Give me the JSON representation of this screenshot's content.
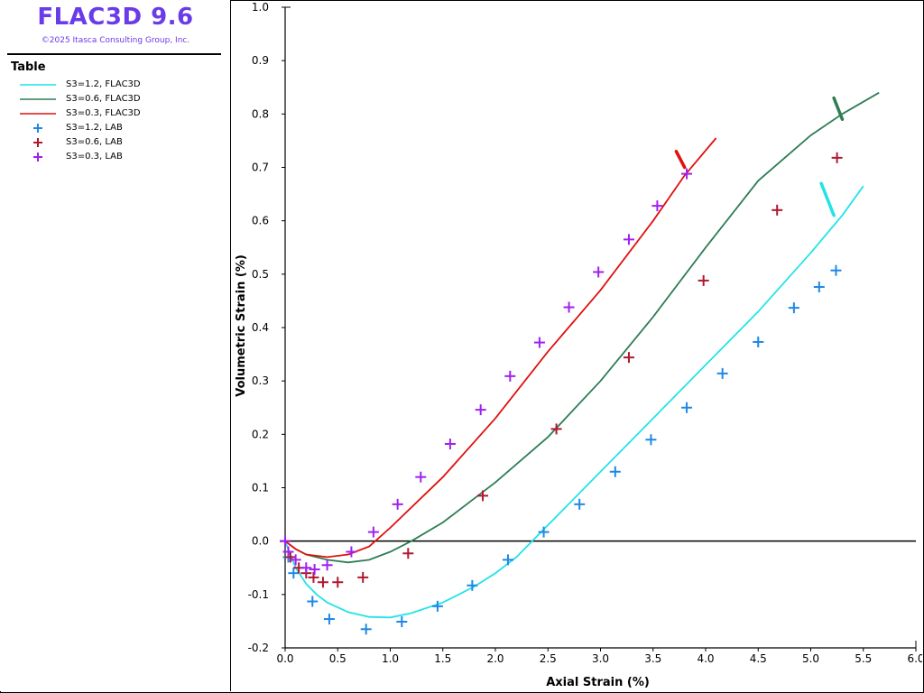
{
  "sidebar": {
    "app_title": "FLAC3D 9.6",
    "copyright": "©2025 Itasca Consulting Group, Inc.",
    "legend_heading": "Table"
  },
  "legend": [
    {
      "label": "S3=1.2, FLAC3D",
      "kind": "line",
      "color": "#22e3e8"
    },
    {
      "label": "S3=0.6, FLAC3D",
      "kind": "line",
      "color": "#2e7d55"
    },
    {
      "label": "S3=0.3, FLAC3D",
      "kind": "line",
      "color": "#e01010"
    },
    {
      "label": "S3=1.2, LAB",
      "kind": "cross",
      "color": "#1e88e5"
    },
    {
      "label": "S3=0.6, LAB",
      "kind": "cross",
      "color": "#b0182e"
    },
    {
      "label": "S3=0.3, LAB",
      "kind": "cross",
      "color": "#a020f0"
    }
  ],
  "chart_data": {
    "type": "line",
    "xlabel": "Axial Strain (%)",
    "ylabel": "Volumetric Strain (%)",
    "xlim": [
      0.0,
      6.0
    ],
    "ylim": [
      -0.2,
      1.0
    ],
    "xticks": [
      "0.0",
      "0.5",
      "1.0",
      "1.5",
      "2.0",
      "2.5",
      "3.0",
      "3.5",
      "4.0",
      "4.5",
      "5.0",
      "5.5",
      "6.0"
    ],
    "yticks": [
      "-0.2",
      "-0.1",
      "0.0",
      "0.1",
      "0.2",
      "0.3",
      "0.4",
      "0.5",
      "0.6",
      "0.7",
      "0.8",
      "0.9",
      "1.0"
    ],
    "zero_line": true,
    "grid": false,
    "series": [
      {
        "name": "S3=1.2, FLAC3D",
        "kind": "line",
        "color": "#22e3e8",
        "points": [
          [
            0.0,
            0.0
          ],
          [
            0.1,
            -0.05
          ],
          [
            0.2,
            -0.08
          ],
          [
            0.3,
            -0.1
          ],
          [
            0.4,
            -0.115
          ],
          [
            0.6,
            -0.133
          ],
          [
            0.8,
            -0.142
          ],
          [
            1.0,
            -0.143
          ],
          [
            1.2,
            -0.135
          ],
          [
            1.5,
            -0.115
          ],
          [
            1.8,
            -0.085
          ],
          [
            2.0,
            -0.06
          ],
          [
            2.2,
            -0.03
          ],
          [
            2.5,
            0.03
          ],
          [
            3.0,
            0.13
          ],
          [
            3.5,
            0.23
          ],
          [
            4.0,
            0.33
          ],
          [
            4.5,
            0.43
          ],
          [
            5.0,
            0.54
          ],
          [
            5.3,
            0.61
          ],
          [
            5.5,
            0.665
          ]
        ],
        "tick": [
          [
            5.22,
            0.61
          ],
          [
            5.1,
            0.67
          ]
        ]
      },
      {
        "name": "S3=0.6, FLAC3D",
        "kind": "line",
        "color": "#2e7d55",
        "points": [
          [
            0.0,
            0.0
          ],
          [
            0.1,
            -0.015
          ],
          [
            0.2,
            -0.025
          ],
          [
            0.4,
            -0.035
          ],
          [
            0.6,
            -0.04
          ],
          [
            0.8,
            -0.035
          ],
          [
            1.0,
            -0.02
          ],
          [
            1.2,
            0.0
          ],
          [
            1.5,
            0.035
          ],
          [
            2.0,
            0.11
          ],
          [
            2.5,
            0.195
          ],
          [
            3.0,
            0.3
          ],
          [
            3.5,
            0.42
          ],
          [
            4.0,
            0.55
          ],
          [
            4.5,
            0.675
          ],
          [
            5.0,
            0.76
          ],
          [
            5.3,
            0.8
          ],
          [
            5.65,
            0.84
          ]
        ],
        "tick": [
          [
            5.3,
            0.79
          ],
          [
            5.22,
            0.83
          ]
        ]
      },
      {
        "name": "S3=0.3, FLAC3D",
        "kind": "line",
        "color": "#e01010",
        "points": [
          [
            0.0,
            0.0
          ],
          [
            0.1,
            -0.015
          ],
          [
            0.2,
            -0.025
          ],
          [
            0.4,
            -0.03
          ],
          [
            0.6,
            -0.025
          ],
          [
            0.8,
            -0.01
          ],
          [
            1.0,
            0.025
          ],
          [
            1.5,
            0.12
          ],
          [
            2.0,
            0.23
          ],
          [
            2.5,
            0.355
          ],
          [
            3.0,
            0.47
          ],
          [
            3.5,
            0.6
          ],
          [
            3.8,
            0.685
          ],
          [
            4.1,
            0.755
          ]
        ],
        "tick": [
          [
            3.8,
            0.7
          ],
          [
            3.72,
            0.73
          ]
        ]
      },
      {
        "name": "S3=1.2, LAB",
        "kind": "scatter",
        "color": "#1e88e5",
        "points": [
          [
            0.0,
            0.0
          ],
          [
            0.03,
            -0.03
          ],
          [
            0.08,
            -0.06
          ],
          [
            0.26,
            -0.113
          ],
          [
            0.42,
            -0.146
          ],
          [
            0.77,
            -0.165
          ],
          [
            1.11,
            -0.151
          ],
          [
            1.45,
            -0.122
          ],
          [
            1.78,
            -0.083
          ],
          [
            2.12,
            -0.035
          ],
          [
            2.46,
            0.017
          ],
          [
            2.8,
            0.069
          ],
          [
            3.14,
            0.13
          ],
          [
            3.48,
            0.19
          ],
          [
            3.82,
            0.25
          ],
          [
            4.16,
            0.314
          ],
          [
            4.5,
            0.373
          ],
          [
            4.84,
            0.437
          ],
          [
            5.08,
            0.476
          ],
          [
            5.24,
            0.507
          ]
        ]
      },
      {
        "name": "S3=0.6, LAB",
        "kind": "scatter",
        "color": "#b0182e",
        "points": [
          [
            0.0,
            0.0
          ],
          [
            0.05,
            -0.03
          ],
          [
            0.13,
            -0.05
          ],
          [
            0.2,
            -0.06
          ],
          [
            0.27,
            -0.068
          ],
          [
            0.36,
            -0.077
          ],
          [
            0.5,
            -0.077
          ],
          [
            0.74,
            -0.068
          ],
          [
            1.17,
            -0.023
          ],
          [
            1.88,
            0.085
          ],
          [
            2.58,
            0.21
          ],
          [
            3.27,
            0.344
          ],
          [
            3.98,
            0.488
          ],
          [
            4.68,
            0.62
          ],
          [
            5.25,
            0.718
          ]
        ]
      },
      {
        "name": "S3=0.3, LAB",
        "kind": "scatter",
        "color": "#a020f0",
        "points": [
          [
            0.0,
            0.0
          ],
          [
            0.03,
            -0.02
          ],
          [
            0.1,
            -0.035
          ],
          [
            0.2,
            -0.05
          ],
          [
            0.28,
            -0.053
          ],
          [
            0.4,
            -0.045
          ],
          [
            0.63,
            -0.02
          ],
          [
            0.84,
            0.017
          ],
          [
            1.07,
            0.069
          ],
          [
            1.29,
            0.12
          ],
          [
            1.57,
            0.182
          ],
          [
            1.86,
            0.246
          ],
          [
            2.14,
            0.309
          ],
          [
            2.42,
            0.372
          ],
          [
            2.7,
            0.438
          ],
          [
            2.98,
            0.504
          ],
          [
            3.27,
            0.565
          ],
          [
            3.54,
            0.628
          ],
          [
            3.82,
            0.688
          ]
        ]
      }
    ]
  }
}
